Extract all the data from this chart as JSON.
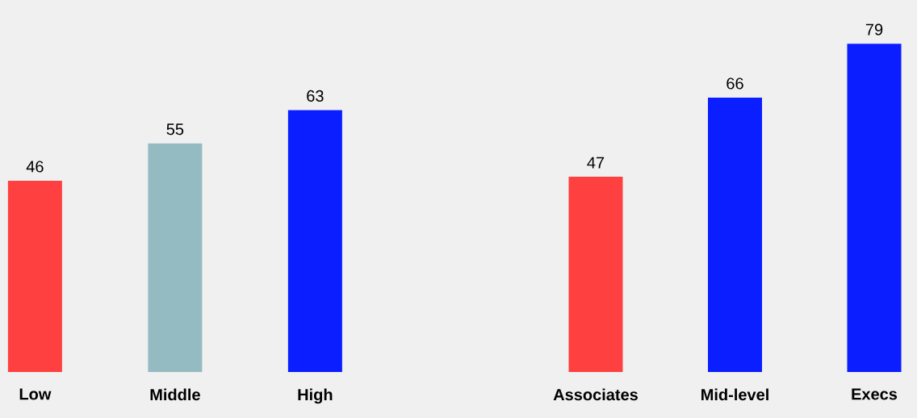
{
  "chart_data": [
    {
      "type": "bar",
      "categories": [
        "Low",
        "Middle",
        "High"
      ],
      "values": [
        46,
        55,
        63
      ],
      "colors": [
        "#ff4040",
        "#95bbc2",
        "#0a1eff"
      ],
      "data_labels": true
    },
    {
      "type": "bar",
      "categories": [
        "Associates",
        "Mid-level",
        "Execs"
      ],
      "values": [
        47,
        66,
        79
      ],
      "colors": [
        "#ff4040",
        "#0a1eff",
        "#0a1eff"
      ],
      "data_labels": true
    }
  ]
}
